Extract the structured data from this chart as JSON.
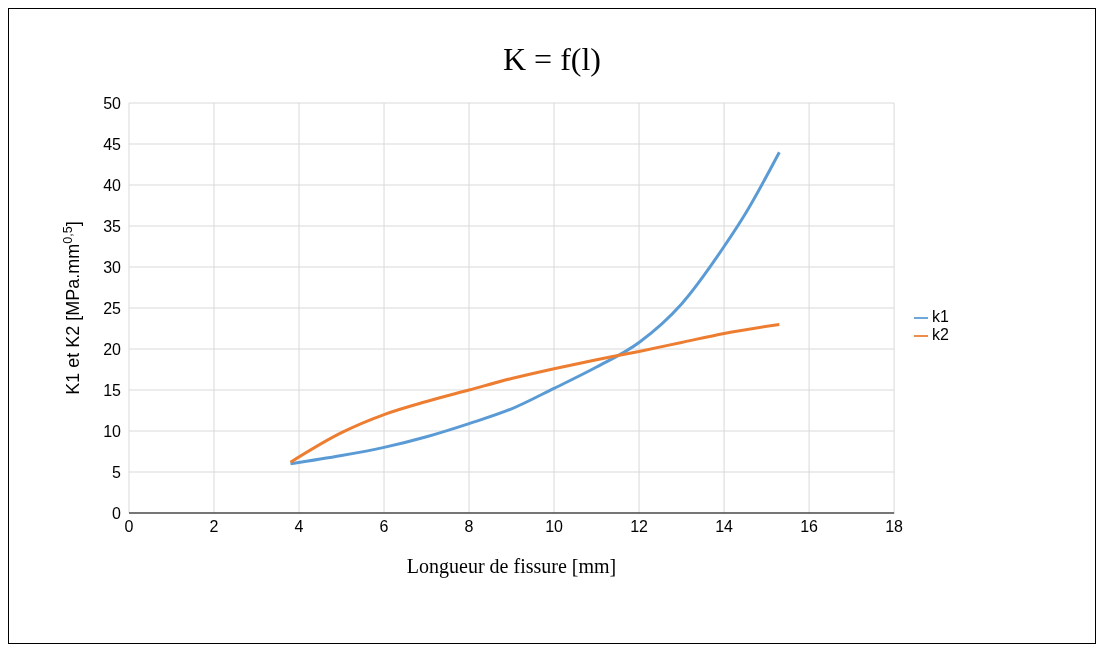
{
  "chart_data": {
    "type": "line",
    "title": "K = f(l)",
    "xlabel": "Longueur de fissure [mm]",
    "ylabel": "K1 et K2 [MPa.mm$^{0,5}$]",
    "xlim": [
      0,
      18
    ],
    "xticks": [
      0,
      2,
      4,
      6,
      8,
      10,
      12,
      14,
      16,
      18
    ],
    "ylim": [
      0,
      50
    ],
    "yticks": [
      0,
      5,
      10,
      15,
      20,
      25,
      30,
      35,
      40,
      45,
      50
    ],
    "grid": true,
    "legend": "right",
    "marker": "none",
    "line_style": "solid",
    "series": [
      {
        "name": "k1",
        "color": "#5b9bd5",
        "x": [
          3.8,
          5,
          6,
          7,
          8,
          9,
          10,
          11,
          12,
          13,
          14,
          14.5,
          15.3
        ],
        "values": [
          6,
          7,
          8,
          9.3,
          10.9,
          12.7,
          15.2,
          17.8,
          20.8,
          25.5,
          32.5,
          36.5,
          44
        ]
      },
      {
        "name": "k2",
        "color": "#ed7d31",
        "x": [
          3.8,
          5,
          6,
          7,
          8,
          9,
          10,
          11,
          12,
          13,
          14,
          15.3
        ],
        "values": [
          6.2,
          9.8,
          12,
          13.6,
          15,
          16.4,
          17.6,
          18.7,
          19.7,
          20.8,
          21.9,
          23
        ]
      }
    ]
  }
}
